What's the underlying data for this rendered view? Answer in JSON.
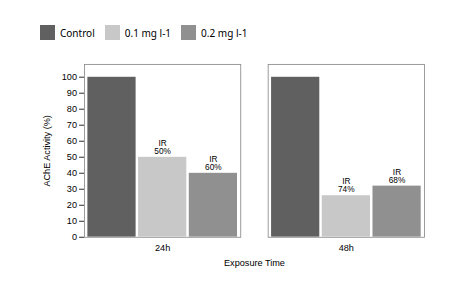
{
  "chart_data": {
    "type": "bar",
    "categories": [
      "24h",
      "48h"
    ],
    "series": [
      {
        "name": "Control",
        "color": "#606060",
        "values": [
          100,
          100
        ]
      },
      {
        "name": "0.1 mg l-1",
        "color": "#c8c8c8",
        "values": [
          50,
          26
        ]
      },
      {
        "name": "0.2 mg l-1",
        "color": "#909090",
        "values": [
          40,
          32
        ]
      }
    ],
    "xlabel": "Exposure Time",
    "ylabel": "AChE Activity (%)",
    "ylim": [
      0,
      108
    ],
    "yticks": [
      0,
      10,
      20,
      30,
      40,
      50,
      60,
      70,
      80,
      90,
      100
    ],
    "grid": false,
    "legend": "top",
    "annotations": [
      {
        "text": "IR\n50%",
        "category": "24h",
        "series": "0.1 mg l-1",
        "y": 52
      },
      {
        "text": "IR\n60%",
        "category": "24h",
        "series": "0.2 mg l-1",
        "y": 42
      },
      {
        "text": "IR\n74%",
        "category": "48h",
        "series": "0.1 mg l-1",
        "y": 28
      },
      {
        "text": "IR\n68%",
        "category": "48h",
        "series": "0.2 mg l-1",
        "y": 34
      }
    ]
  }
}
